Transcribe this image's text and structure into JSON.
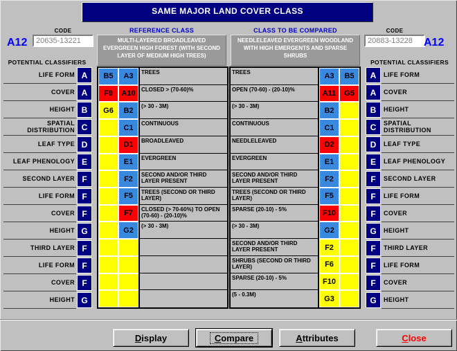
{
  "window": {
    "title": "SAME MAJOR LAND COVER CLASS"
  },
  "reference": {
    "class_id": "A12",
    "code_label": "CODE",
    "code_value": "20635-13221",
    "column_title": "REFERENCE CLASS",
    "description": "MULTI-LAYERED BROADLEAVED EVERGREEN HIGH FOREST (WITH SECOND LAYER OF MEDIUM HIGH TREES)",
    "potential_classifiers_label": "POTENTIAL CLASSIFIERS"
  },
  "compared": {
    "class_id": "A12",
    "code_label": "CODE",
    "code_value": "20883-13228",
    "column_title": "CLASS TO BE COMPARED",
    "description": "NEEDLELEAVED EVERGREEN WOODLAND WITH HIGH EMERGENTS AND SPARSE SHRUBS",
    "potential_classifiers_label": "POTENTIAL CLASSIFIERS"
  },
  "classifier_rows": [
    {
      "label": "LIFE FORM",
      "letter": "A",
      "left": {
        "cells": [
          {
            "code": "B5",
            "color": "blue"
          },
          {
            "code": "A3",
            "color": "blue"
          }
        ],
        "text": "TREES"
      },
      "right": {
        "text": "TREES",
        "cells": [
          {
            "code": "A3",
            "color": "blue"
          },
          {
            "code": "B5",
            "color": "blue"
          }
        ]
      }
    },
    {
      "label": "COVER",
      "letter": "A",
      "left": {
        "cells": [
          {
            "code": "F9",
            "color": "red"
          },
          {
            "code": "A10",
            "color": "red"
          }
        ],
        "text": "CLOSED > (70-60)%"
      },
      "right": {
        "text": "OPEN (70-60) - (20-10)%",
        "cells": [
          {
            "code": "A11",
            "color": "red"
          },
          {
            "code": "G5",
            "color": "red"
          }
        ]
      }
    },
    {
      "label": "HEIGHT",
      "letter": "B",
      "left": {
        "cells": [
          {
            "code": "G6",
            "color": "yellow"
          },
          {
            "code": "B2",
            "color": "blue"
          }
        ],
        "text": "(> 30 - 3M)"
      },
      "right": {
        "text": "(> 30 - 3M)",
        "cells": [
          {
            "code": "B2",
            "color": "blue"
          },
          {
            "code": "",
            "color": "yellow"
          }
        ]
      }
    },
    {
      "label": "SPATIAL DISTRIBUTION",
      "letter": "C",
      "left": {
        "cells": [
          {
            "code": "",
            "color": "yellow"
          },
          {
            "code": "C1",
            "color": "blue"
          }
        ],
        "text": "CONTINUOUS"
      },
      "right": {
        "text": "CONTINUOUS",
        "cells": [
          {
            "code": "C1",
            "color": "blue"
          },
          {
            "code": "",
            "color": "yellow"
          }
        ]
      }
    },
    {
      "label": "LEAF TYPE",
      "letter": "D",
      "left": {
        "cells": [
          {
            "code": "",
            "color": "yellow"
          },
          {
            "code": "D1",
            "color": "red"
          }
        ],
        "text": "BROADLEAVED"
      },
      "right": {
        "text": "NEEDLELEAVED",
        "cells": [
          {
            "code": "D2",
            "color": "red"
          },
          {
            "code": "",
            "color": "yellow"
          }
        ]
      }
    },
    {
      "label": "LEAF PHENOLOGY",
      "letter": "E",
      "left": {
        "cells": [
          {
            "code": "",
            "color": "yellow"
          },
          {
            "code": "E1",
            "color": "blue"
          }
        ],
        "text": "EVERGREEN"
      },
      "right": {
        "text": "EVERGREEN",
        "cells": [
          {
            "code": "E1",
            "color": "blue"
          },
          {
            "code": "",
            "color": "yellow"
          }
        ]
      }
    },
    {
      "label": "SECOND LAYER",
      "letter": "F",
      "left": {
        "cells": [
          {
            "code": "",
            "color": "yellow"
          },
          {
            "code": "F2",
            "color": "blue"
          }
        ],
        "text": "SECOND AND/OR THIRD LAYER PRESENT"
      },
      "right": {
        "text": "SECOND AND/OR THIRD LAYER PRESENT",
        "cells": [
          {
            "code": "F2",
            "color": "blue"
          },
          {
            "code": "",
            "color": "yellow"
          }
        ]
      }
    },
    {
      "label": "LIFE FORM",
      "letter": "F",
      "left": {
        "cells": [
          {
            "code": "",
            "color": "yellow"
          },
          {
            "code": "F5",
            "color": "blue"
          }
        ],
        "text": "TREES (SECOND OR THIRD LAYER)"
      },
      "right": {
        "text": "TREES (SECOND OR THIRD LAYER)",
        "cells": [
          {
            "code": "F5",
            "color": "blue"
          },
          {
            "code": "",
            "color": "yellow"
          }
        ]
      }
    },
    {
      "label": "COVER",
      "letter": "F",
      "left": {
        "cells": [
          {
            "code": "",
            "color": "yellow"
          },
          {
            "code": "F7",
            "color": "red"
          }
        ],
        "text": "CLOSED (> 70-60%) TO OPEN (70-60) - (20-10)%"
      },
      "right": {
        "text": "SPARSE (20-10) - 5%",
        "cells": [
          {
            "code": "F10",
            "color": "red"
          },
          {
            "code": "",
            "color": "yellow"
          }
        ]
      }
    },
    {
      "label": "HEIGHT",
      "letter": "G",
      "left": {
        "cells": [
          {
            "code": "",
            "color": "yellow"
          },
          {
            "code": "G2",
            "color": "blue"
          }
        ],
        "text": "(> 30 - 3M)"
      },
      "right": {
        "text": "(> 30 - 3M)",
        "cells": [
          {
            "code": "G2",
            "color": "blue"
          },
          {
            "code": "",
            "color": "yellow"
          }
        ]
      }
    },
    {
      "label": "THIRD LAYER",
      "letter": "F",
      "left": {
        "cells": [
          {
            "code": "",
            "color": "yellow"
          },
          {
            "code": "",
            "color": "yellow"
          }
        ],
        "text": ""
      },
      "right": {
        "text": "SECOND AND/OR THIRD LAYER PRESENT",
        "cells": [
          {
            "code": "F2",
            "color": "yellow"
          },
          {
            "code": "",
            "color": "yellow"
          }
        ]
      }
    },
    {
      "label": "LIFE FORM",
      "letter": "F",
      "left": {
        "cells": [
          {
            "code": "",
            "color": "yellow"
          },
          {
            "code": "",
            "color": "yellow"
          }
        ],
        "text": ""
      },
      "right": {
        "text": "SHRUBS (SECOND OR THIRD LAYER)",
        "cells": [
          {
            "code": "F6",
            "color": "yellow"
          },
          {
            "code": "",
            "color": "yellow"
          }
        ]
      }
    },
    {
      "label": "COVER",
      "letter": "F",
      "left": {
        "cells": [
          {
            "code": "",
            "color": "yellow"
          },
          {
            "code": "",
            "color": "yellow"
          }
        ],
        "text": ""
      },
      "right": {
        "text": "SPARSE (20-10) - 5%",
        "cells": [
          {
            "code": "F10",
            "color": "yellow"
          },
          {
            "code": "",
            "color": "yellow"
          }
        ]
      }
    },
    {
      "label": "HEIGHT",
      "letter": "G",
      "left": {
        "cells": [
          {
            "code": "",
            "color": "yellow"
          },
          {
            "code": "",
            "color": "yellow"
          }
        ],
        "text": ""
      },
      "right": {
        "text": "(5 - 0.3M)",
        "cells": [
          {
            "code": "G3",
            "color": "yellow"
          },
          {
            "code": "",
            "color": "yellow"
          }
        ]
      }
    }
  ],
  "buttons": {
    "display": "Display",
    "compare": "Compare",
    "attributes": "Attributes",
    "close": "Close"
  },
  "colors": {
    "window_bg": "#C0C0C0",
    "title_bg": "#000080",
    "accent_blue": "#0000FF",
    "cell_red": "#FF0000",
    "cell_yellow": "#FFFF00",
    "cell_blue_light": "#66B2FF",
    "cell_blue_dark": "#0B62D8",
    "close_text": "#FF0000"
  }
}
